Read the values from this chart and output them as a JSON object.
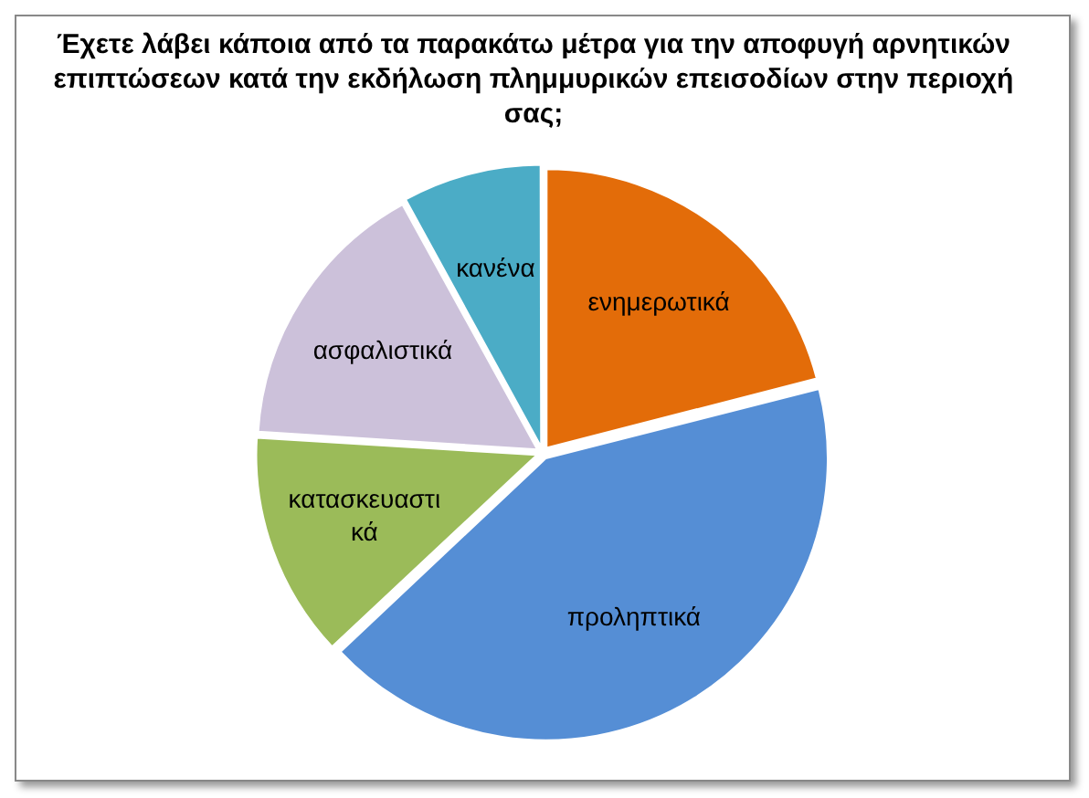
{
  "chart_data": {
    "type": "pie",
    "title": "Έχετε λάβει κάποια από τα παρακάτω μέτρα για την αποφυγή αρνητικών επιπτώσεων κατά την εκδήλωση πλημμυρικών επεισοδίων στην περιοχή σας;",
    "categories": [
      "ενημερωτικά",
      "προληπτικά",
      "κατασκευαστικά",
      "ασφαλιστικά",
      "κανένα"
    ],
    "values": [
      21,
      42,
      13,
      16,
      8
    ],
    "colors": [
      "#e36c09",
      "#558ed5",
      "#9bbb59",
      "#ccc1da",
      "#4bacc6"
    ],
    "legend": false
  }
}
